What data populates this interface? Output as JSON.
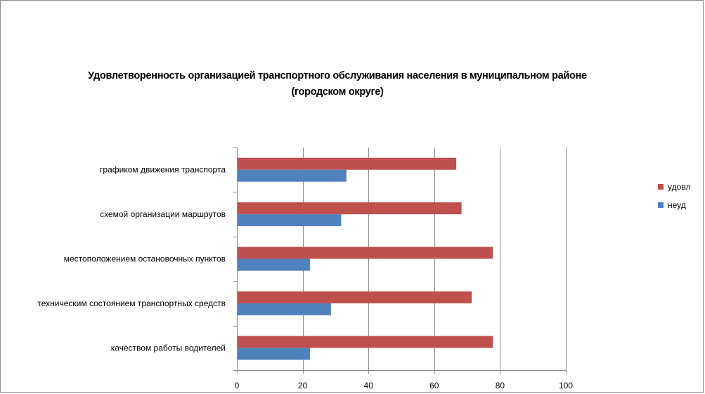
{
  "chart_data": {
    "type": "bar",
    "orientation": "horizontal",
    "title": "Удовлетворенность организацией транспортного обслуживания населения в муниципальном районе (городском округе)",
    "title_lines": [
      "Удовлетворенность организацией транспортного обслуживания населения в муниципальном районе",
      "(городском округе)"
    ],
    "categories": [
      "графиком движения транспорта",
      "схемой организации маршрутов",
      "местоположением остановочных пунктов",
      "техническим состоянием транспортных средств",
      "качеством работы водителей"
    ],
    "series": [
      {
        "name": "удовл",
        "color": "#c0504d",
        "values": [
          66.7,
          68.3,
          77.8,
          71.4,
          77.8
        ]
      },
      {
        "name": "неуд",
        "color": "#4f81bd",
        "values": [
          33.3,
          31.7,
          22.2,
          28.6,
          22.2
        ]
      }
    ],
    "xlim": [
      0,
      100
    ],
    "ticks": [
      0,
      20,
      40,
      60,
      80,
      100
    ],
    "grid": true,
    "legend_position": "right"
  }
}
